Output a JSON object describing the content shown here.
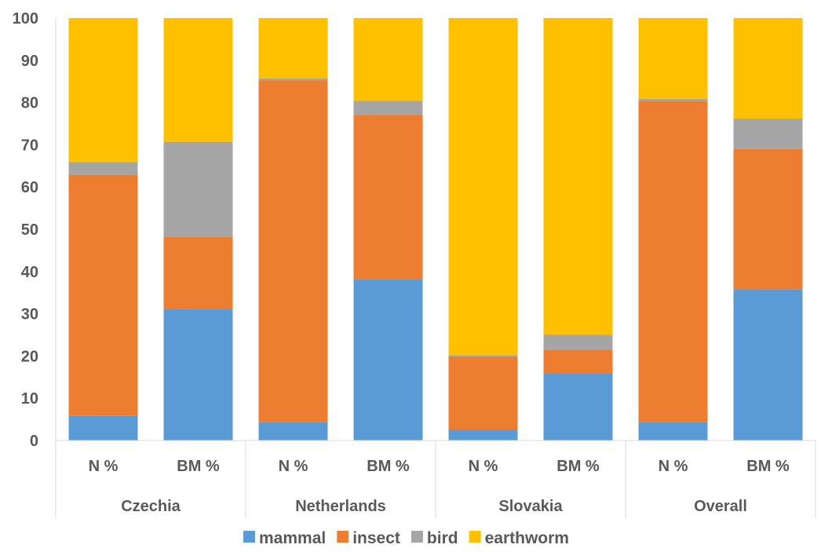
{
  "chart_data": {
    "type": "bar",
    "stacked": true,
    "groups": [
      {
        "label": "Czechia",
        "categories": [
          "N %",
          "BM %"
        ]
      },
      {
        "label": "Netherlands",
        "categories": [
          "N %",
          "BM %"
        ]
      },
      {
        "label": "Slovakia",
        "categories": [
          "N %",
          "BM %"
        ]
      },
      {
        "label": "Overall",
        "categories": [
          "N %",
          "BM %"
        ]
      }
    ],
    "categories": [
      "N %",
      "BM %",
      "N %",
      "BM %",
      "N %",
      "BM %",
      "N %",
      "BM %"
    ],
    "series": [
      {
        "name": "mammal",
        "color": "#5B9BD5",
        "values": [
          5.8,
          31.2,
          4.3,
          38.1,
          2.6,
          15.9,
          4.4,
          35.8
        ]
      },
      {
        "name": "insect",
        "color": "#ED7D31",
        "values": [
          57.1,
          17.0,
          81.0,
          39.0,
          17.2,
          5.6,
          76.0,
          33.2
        ]
      },
      {
        "name": "bird",
        "color": "#A5A5A5",
        "values": [
          3.0,
          22.5,
          0.4,
          3.3,
          0.4,
          3.5,
          0.5,
          7.2
        ]
      },
      {
        "name": "earthworm",
        "color": "#FFC000",
        "values": [
          34.1,
          29.3,
          14.3,
          19.6,
          79.8,
          75.0,
          19.1,
          23.8
        ]
      }
    ],
    "ylim": [
      0,
      100
    ],
    "yticks": [
      "0",
      "10",
      "20",
      "30",
      "40",
      "50",
      "60",
      "70",
      "80",
      "90",
      "100"
    ],
    "grid": false,
    "legend": "bottom",
    "title": "",
    "xlabel": "",
    "ylabel": ""
  }
}
